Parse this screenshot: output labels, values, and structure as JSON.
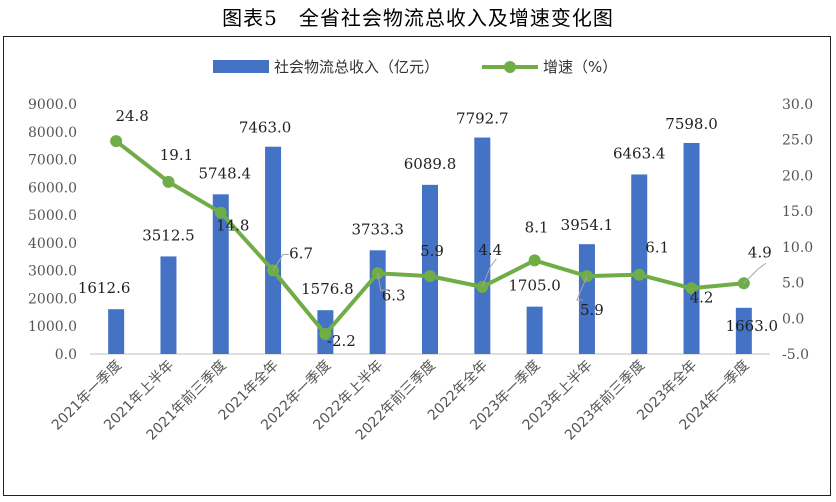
{
  "figure_title": "图表5　全省社会物流总收入及增速变化图",
  "chart_data": {
    "type": "bar+line",
    "categories": [
      "2021年一季度",
      "2021年上半年",
      "2021年前三季度",
      "2021年全年",
      "2022年一季度",
      "2022年上半年",
      "2022年前三季度",
      "2022年全年",
      "2023年一季度",
      "2023年上半年",
      "2023年前三季度",
      "2023年全年",
      "2024年一季度"
    ],
    "series": [
      {
        "name": "社会物流总收入（亿元）",
        "type": "bar",
        "axis": "left",
        "color": "#4472C4",
        "values": [
          1612.6,
          3512.5,
          5748.4,
          7463.0,
          1576.8,
          3733.3,
          6089.8,
          7792.7,
          1705.0,
          3954.1,
          6463.4,
          7598.0,
          1663.0
        ],
        "labels": [
          "1612.6",
          "3512.5",
          "5748.4",
          "7463.0",
          "1576.8",
          "3733.3",
          "6089.8",
          "7792.7",
          "1705.0",
          "3954.1",
          "6463.4",
          "7598.0",
          "1663.0"
        ]
      },
      {
        "name": "增速（%）",
        "type": "line",
        "axis": "right",
        "color": "#70AD47",
        "values": [
          24.8,
          19.1,
          14.8,
          6.7,
          -2.2,
          6.3,
          5.9,
          4.4,
          8.1,
          5.9,
          6.1,
          4.2,
          4.9
        ],
        "labels": [
          "24.8",
          "19.1",
          "14.8",
          "6.7",
          "-2.2",
          "6.3",
          "5.9",
          "4.4",
          "8.1",
          "5.9",
          "6.1",
          "4.2",
          "4.9"
        ]
      }
    ],
    "y_left": {
      "min": 0,
      "max": 9000,
      "ticks": [
        "0.0",
        "1000.0",
        "2000.0",
        "3000.0",
        "4000.0",
        "5000.0",
        "6000.0",
        "7000.0",
        "8000.0",
        "9000.0"
      ]
    },
    "y_right": {
      "min": -5,
      "max": 30,
      "ticks": [
        "-5.0",
        "0.0",
        "5.0",
        "10.0",
        "15.0",
        "20.0",
        "25.0",
        "30.0"
      ]
    },
    "legend": "top-center",
    "grid": false
  }
}
